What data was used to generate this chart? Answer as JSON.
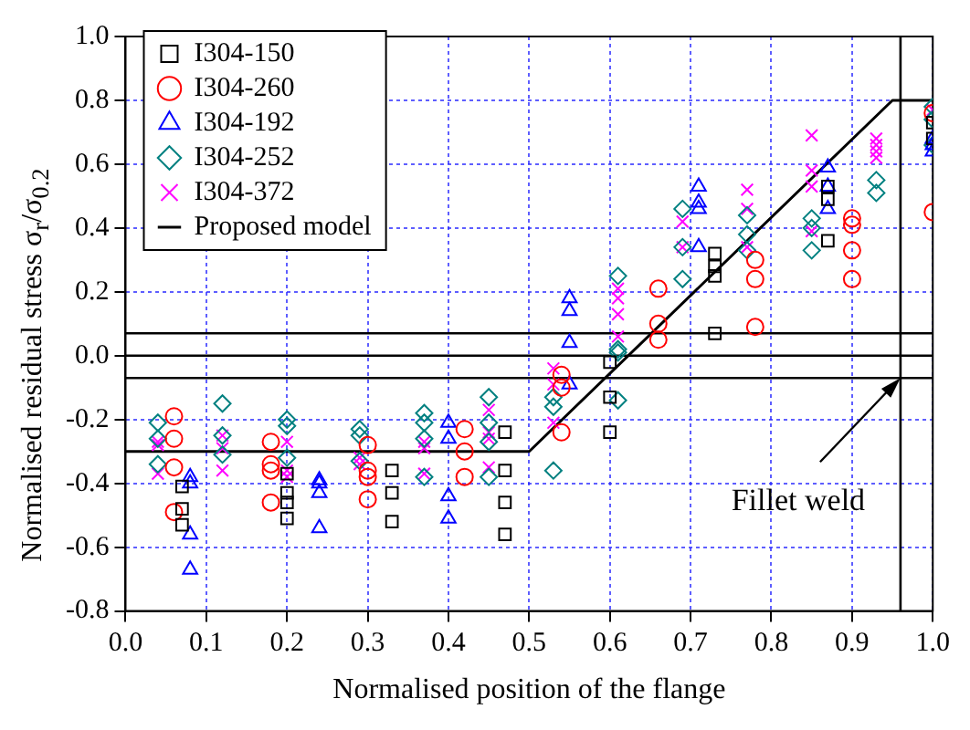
{
  "chart_data": {
    "type": "scatter",
    "xlabel": "Normalised position of the flange",
    "ylabel": "Normalised residual stress σ$_{r}$/σ$_{0.2}$",
    "xlim": [
      0,
      1
    ],
    "xticks": [
      {
        "value": 0,
        "label": "0.0"
      },
      0.1,
      0.2,
      0.3,
      0.4,
      0.5,
      0.6,
      0.7,
      0.8,
      0.9,
      {
        "value": 1,
        "label": "1.0"
      }
    ],
    "ylim": [
      -0.8,
      1
    ],
    "yticks": [
      -0.8,
      -0.6,
      -0.4,
      -0.2,
      {
        "value": 0,
        "label": "0.0"
      },
      0.2,
      0.4,
      0.6,
      0.8,
      {
        "value": 1,
        "label": "1.0"
      }
    ],
    "grid": true,
    "legend": "top left",
    "series": [
      {
        "name": "I304-150",
        "color": "#000000",
        "marker": "square",
        "x": [
          0.07,
          0.07,
          0.07,
          0.2,
          0.2,
          0.2,
          0.2,
          0.33,
          0.33,
          0.33,
          0.47,
          0.47,
          0.47,
          0.47,
          0.6,
          0.6,
          0.6,
          0.73,
          0.73,
          0.73,
          0.73,
          0.87,
          0.87,
          0.87,
          1.0,
          1.0
        ],
        "values": [
          -0.41,
          -0.48,
          -0.53,
          -0.37,
          -0.43,
          -0.46,
          -0.51,
          -0.36,
          -0.43,
          -0.52,
          -0.24,
          -0.36,
          -0.46,
          -0.56,
          -0.02,
          -0.13,
          -0.24,
          0.32,
          0.28,
          0.25,
          0.07,
          0.53,
          0.49,
          0.36,
          0.73,
          0.68
        ]
      },
      {
        "name": "I304-260",
        "color": "#ff0000",
        "marker": "circle",
        "x": [
          0.06,
          0.06,
          0.06,
          0.06,
          0.18,
          0.18,
          0.18,
          0.18,
          0.3,
          0.3,
          0.3,
          0.3,
          0.42,
          0.42,
          0.42,
          0.54,
          0.54,
          0.54,
          0.66,
          0.66,
          0.66,
          0.78,
          0.78,
          0.78,
          0.9,
          0.9,
          0.9,
          0.9,
          1.0,
          1.0
        ],
        "values": [
          -0.19,
          -0.26,
          -0.35,
          -0.49,
          -0.27,
          -0.34,
          -0.36,
          -0.46,
          -0.28,
          -0.36,
          -0.38,
          -0.45,
          -0.23,
          -0.3,
          -0.38,
          -0.06,
          -0.1,
          -0.24,
          0.21,
          0.1,
          0.05,
          0.3,
          0.24,
          0.09,
          0.43,
          0.41,
          0.33,
          0.24,
          0.45,
          0.76
        ]
      },
      {
        "name": "I304-192",
        "color": "#0000ff",
        "marker": "triangle",
        "x": [
          0.08,
          0.08,
          0.08,
          0.08,
          0.24,
          0.24,
          0.24,
          0.24,
          0.4,
          0.4,
          0.4,
          0.4,
          0.55,
          0.55,
          0.55,
          0.55,
          0.71,
          0.71,
          0.71,
          0.71,
          0.87,
          0.87,
          0.87,
          1.0,
          1.0,
          1.0
        ],
        "values": [
          -0.38,
          -0.4,
          -0.56,
          -0.67,
          -0.39,
          -0.4,
          -0.43,
          -0.54,
          -0.21,
          -0.26,
          -0.44,
          -0.51,
          0.18,
          0.14,
          0.04,
          -0.09,
          0.53,
          0.48,
          0.46,
          0.34,
          0.59,
          0.53,
          0.46,
          0.68,
          0.66,
          0.64
        ]
      },
      {
        "name": "I304-252",
        "color": "#008080",
        "marker": "diamond",
        "x": [
          0.04,
          0.04,
          0.04,
          0.12,
          0.12,
          0.12,
          0.2,
          0.2,
          0.2,
          0.29,
          0.29,
          0.29,
          0.37,
          0.37,
          0.37,
          0.37,
          0.45,
          0.45,
          0.45,
          0.45,
          0.53,
          0.53,
          0.53,
          0.61,
          0.61,
          0.61,
          0.61,
          0.69,
          0.69,
          0.69,
          0.77,
          0.77,
          0.77,
          0.85,
          0.85,
          0.85,
          0.93,
          0.93,
          1.0,
          1.0,
          1.0
        ],
        "values": [
          -0.21,
          -0.26,
          -0.34,
          -0.15,
          -0.25,
          -0.31,
          -0.2,
          -0.22,
          -0.32,
          -0.23,
          -0.25,
          -0.33,
          -0.18,
          -0.21,
          -0.26,
          -0.38,
          -0.13,
          -0.21,
          -0.27,
          -0.38,
          -0.13,
          -0.16,
          -0.36,
          0.25,
          0.02,
          0.01,
          -0.14,
          0.46,
          0.34,
          0.24,
          0.44,
          0.38,
          0.33,
          0.43,
          0.4,
          0.33,
          0.55,
          0.51,
          0.78,
          0.74,
          0.66
        ]
      },
      {
        "name": "I304-372",
        "color": "#ff00ff",
        "marker": "cross",
        "x": [
          0.04,
          0.04,
          0.04,
          0.12,
          0.12,
          0.12,
          0.2,
          0.2,
          0.2,
          0.29,
          0.29,
          0.37,
          0.37,
          0.37,
          0.45,
          0.45,
          0.45,
          0.45,
          0.53,
          0.53,
          0.53,
          0.61,
          0.61,
          0.61,
          0.61,
          0.69,
          0.69,
          0.77,
          0.77,
          0.77,
          0.85,
          0.85,
          0.85,
          0.85,
          0.93,
          0.93,
          0.93,
          0.93,
          1.0
        ],
        "values": [
          -0.27,
          -0.28,
          -0.37,
          -0.25,
          -0.29,
          -0.36,
          -0.27,
          -0.36,
          -0.38,
          -0.32,
          -0.34,
          -0.27,
          -0.29,
          -0.37,
          -0.17,
          -0.24,
          -0.26,
          -0.35,
          -0.04,
          -0.09,
          -0.21,
          0.21,
          0.18,
          0.13,
          0.06,
          0.42,
          0.34,
          0.52,
          0.46,
          0.34,
          0.69,
          0.58,
          0.53,
          0.39,
          0.68,
          0.66,
          0.64,
          0.62,
          0.77
        ]
      },
      {
        "name": "Proposed model",
        "type": "line",
        "color": "#000000",
        "marker": "none",
        "line_style": "solid",
        "x": [
          0,
          0.5,
          0.95,
          1.0
        ],
        "values": [
          -0.3,
          -0.3,
          0.8,
          0.8
        ]
      }
    ],
    "ref_lines": [
      {
        "axis": "y",
        "value": 0.07,
        "color": "#000000"
      },
      {
        "axis": "y",
        "value": 0,
        "color": "#000000"
      },
      {
        "axis": "y",
        "value": -0.07,
        "color": "#000000"
      },
      {
        "axis": "x",
        "value": 0.96,
        "color": "#000000"
      }
    ],
    "annotations": [
      {
        "text": "Fillet weld",
        "x": 0.96,
        "y": -0.07
      }
    ]
  }
}
